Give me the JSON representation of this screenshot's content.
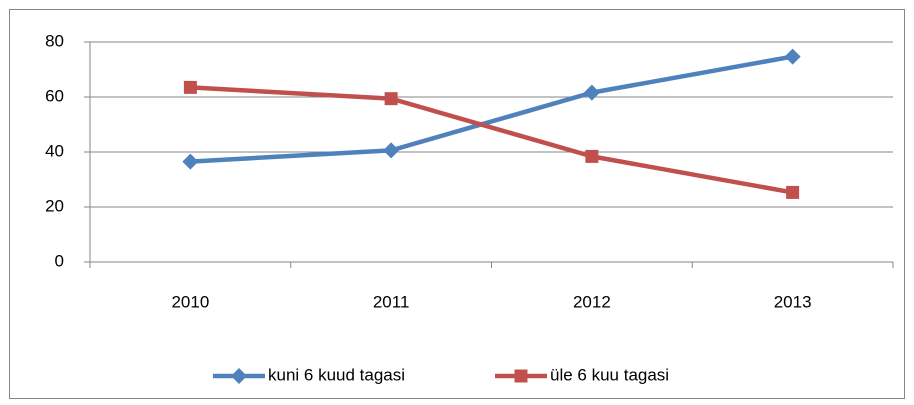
{
  "chart_data": {
    "type": "line",
    "categories": [
      "2010",
      "2011",
      "2012",
      "2013"
    ],
    "series": [
      {
        "name": "kuni 6 kuud tagasi",
        "color": "#4f81bd",
        "marker": "diamond",
        "values": [
          36.5,
          40.6,
          61.6,
          74.7
        ]
      },
      {
        "name": "üle 6 kuu tagasi",
        "color": "#c0504d",
        "marker": "square",
        "values": [
          63.5,
          59.4,
          38.4,
          25.3
        ]
      }
    ],
    "ylim": [
      0,
      80
    ],
    "yticks": [
      0,
      20,
      40,
      60,
      80
    ],
    "grid": true,
    "legend": "bottom"
  }
}
